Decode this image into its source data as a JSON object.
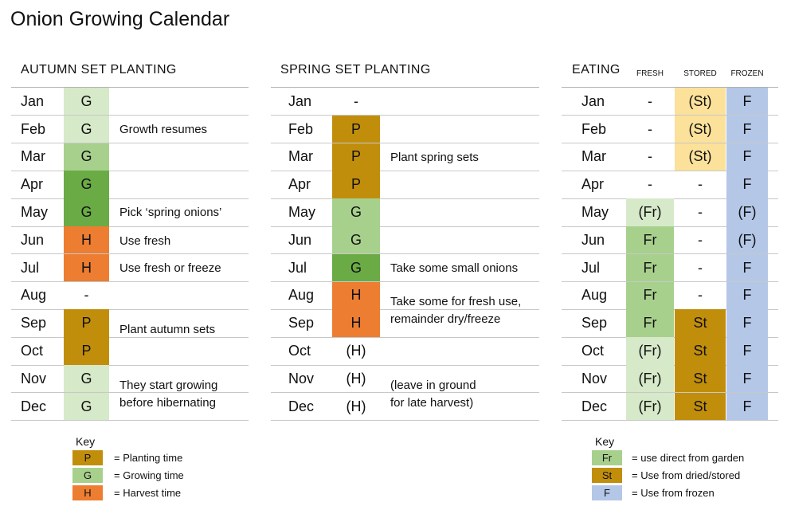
{
  "title": "Onion Growing Calendar",
  "colors": {
    "planting": "#c18e0c",
    "growing_light": "#d6e9c9",
    "growing_mid": "#a8d08d",
    "growing_dark": "#6aab45",
    "harvest": "#ed7d31",
    "stored_light": "#fbe19a",
    "frozen": "#b4c7e7"
  },
  "autumn": {
    "heading": "AUTUMN SET PLANTING",
    "rows": [
      {
        "month": "Jan",
        "code": "G",
        "shade": "growing_light"
      },
      {
        "month": "Feb",
        "code": "G",
        "shade": "growing_light"
      },
      {
        "month": "Mar",
        "code": "G",
        "shade": "growing_mid"
      },
      {
        "month": "Apr",
        "code": "G",
        "shade": "growing_dark"
      },
      {
        "month": "May",
        "code": "G",
        "shade": "growing_dark"
      },
      {
        "month": "Jun",
        "code": "H",
        "shade": "harvest"
      },
      {
        "month": "Jul",
        "code": "H",
        "shade": "harvest"
      },
      {
        "month": "Aug",
        "code": "-",
        "shade": ""
      },
      {
        "month": "Sep",
        "code": "P",
        "shade": "planting"
      },
      {
        "month": "Oct",
        "code": "P",
        "shade": "planting"
      },
      {
        "month": "Nov",
        "code": "G",
        "shade": "growing_light"
      },
      {
        "month": "Dec",
        "code": "G",
        "shade": "growing_light"
      }
    ],
    "notes": [
      "Growth resumes",
      "Pick ‘spring onions’",
      "Use fresh",
      "Use fresh or freeze",
      "Plant autumn sets",
      "They start growing",
      "before hibernating"
    ]
  },
  "spring": {
    "heading": "SPRING SET PLANTING",
    "rows": [
      {
        "month": "Jan",
        "code": "-",
        "shade": ""
      },
      {
        "month": "Feb",
        "code": "P",
        "shade": "planting"
      },
      {
        "month": "Mar",
        "code": "P",
        "shade": "planting"
      },
      {
        "month": "Apr",
        "code": "P",
        "shade": "planting"
      },
      {
        "month": "May",
        "code": "G",
        "shade": "growing_mid"
      },
      {
        "month": "Jun",
        "code": "G",
        "shade": "growing_mid"
      },
      {
        "month": "Jul",
        "code": "G",
        "shade": "growing_dark"
      },
      {
        "month": "Aug",
        "code": "H",
        "shade": "harvest"
      },
      {
        "month": "Sep",
        "code": "H",
        "shade": "harvest"
      },
      {
        "month": "Oct",
        "code": "(H)",
        "shade": ""
      },
      {
        "month": "Nov",
        "code": "(H)",
        "shade": ""
      },
      {
        "month": "Dec",
        "code": "(H)",
        "shade": ""
      }
    ],
    "notes": [
      "Plant spring sets",
      "Take some small onions",
      "Take some for fresh use,",
      "remainder dry/freeze",
      "(leave in ground",
      "for late harvest)"
    ]
  },
  "eating": {
    "heading": "EATING",
    "col_fresh": "FRESH",
    "col_stored": "STORED",
    "col_frozen": "FROZEN",
    "rows": [
      {
        "month": "Jan",
        "fresh": "-",
        "fresh_shade": "",
        "stored": "(St)",
        "stored_shade": "stored_light",
        "frozen": "F",
        "frozen_shade": "frozen"
      },
      {
        "month": "Feb",
        "fresh": "-",
        "fresh_shade": "",
        "stored": "(St)",
        "stored_shade": "stored_light",
        "frozen": "F",
        "frozen_shade": "frozen"
      },
      {
        "month": "Mar",
        "fresh": "-",
        "fresh_shade": "",
        "stored": "(St)",
        "stored_shade": "stored_light",
        "frozen": "F",
        "frozen_shade": "frozen"
      },
      {
        "month": "Apr",
        "fresh": "-",
        "fresh_shade": "",
        "stored": "-",
        "stored_shade": "",
        "frozen": "F",
        "frozen_shade": "frozen"
      },
      {
        "month": "May",
        "fresh": "(Fr)",
        "fresh_shade": "growing_light",
        "stored": "-",
        "stored_shade": "",
        "frozen": "(F)",
        "frozen_shade": "frozen"
      },
      {
        "month": "Jun",
        "fresh": "Fr",
        "fresh_shade": "growing_mid",
        "stored": "-",
        "stored_shade": "",
        "frozen": "(F)",
        "frozen_shade": "frozen"
      },
      {
        "month": "Jul",
        "fresh": "Fr",
        "fresh_shade": "growing_mid",
        "stored": "-",
        "stored_shade": "",
        "frozen": "F",
        "frozen_shade": "frozen"
      },
      {
        "month": "Aug",
        "fresh": "Fr",
        "fresh_shade": "growing_mid",
        "stored": "-",
        "stored_shade": "",
        "frozen": "F",
        "frozen_shade": "frozen"
      },
      {
        "month": "Sep",
        "fresh": "Fr",
        "fresh_shade": "growing_mid",
        "stored": "St",
        "stored_shade": "planting",
        "frozen": "F",
        "frozen_shade": "frozen"
      },
      {
        "month": "Oct",
        "fresh": "(Fr)",
        "fresh_shade": "growing_light",
        "stored": "St",
        "stored_shade": "planting",
        "frozen": "F",
        "frozen_shade": "frozen"
      },
      {
        "month": "Nov",
        "fresh": "(Fr)",
        "fresh_shade": "growing_light",
        "stored": "St",
        "stored_shade": "planting",
        "frozen": "F",
        "frozen_shade": "frozen"
      },
      {
        "month": "Dec",
        "fresh": "(Fr)",
        "fresh_shade": "growing_light",
        "stored": "St",
        "stored_shade": "planting",
        "frozen": "F",
        "frozen_shade": "frozen"
      }
    ]
  },
  "key_left": {
    "title": "Key",
    "items": [
      {
        "code": "P",
        "label": "= Planting time",
        "shade": "planting"
      },
      {
        "code": "G",
        "label": "= Growing time",
        "shade": "growing_mid"
      },
      {
        "code": "H",
        "label": "= Harvest time",
        "shade": "harvest"
      }
    ]
  },
  "key_right": {
    "title": "Key",
    "items": [
      {
        "code": "Fr",
        "label": "= use direct from garden",
        "shade": "growing_mid"
      },
      {
        "code": "St",
        "label": "= Use from dried/stored",
        "shade": "planting"
      },
      {
        "code": "F",
        "label": "= Use from frozen",
        "shade": "frozen"
      }
    ]
  }
}
